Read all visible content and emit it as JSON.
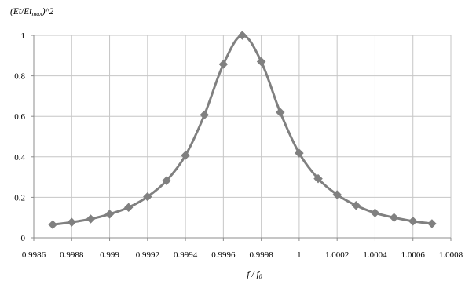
{
  "chart_data": {
    "type": "line",
    "ylabel_main": "(Et/Et",
    "ylabel_sub": "max",
    "ylabel_tail": ")^2",
    "xlabel_main": "f / f",
    "xlabel_sub": "0",
    "xlim": [
      0.9986,
      1.0008
    ],
    "ylim": [
      0,
      1
    ],
    "x_ticks": [
      0.9986,
      0.9988,
      0.999,
      0.9992,
      0.9994,
      0.9996,
      0.9998,
      1,
      1.0002,
      1.0004,
      1.0006,
      1.0008
    ],
    "x_tick_labels": [
      "0.9986",
      "0.9988",
      "0.999",
      "0.9992",
      "0.9994",
      "0.9996",
      "0.9998",
      "1",
      "1.0002",
      "1.0004",
      "1.0006",
      "1.0008"
    ],
    "y_ticks": [
      0,
      0.2,
      0.4,
      0.6,
      0.8,
      1
    ],
    "y_tick_labels": [
      "0",
      "0.2",
      "0.4",
      "0.6",
      "0.8",
      "1"
    ],
    "grid": true,
    "legend": "none",
    "series": [
      {
        "color": "#808080",
        "marker": "diamond",
        "x": [
          0.9987,
          0.9988,
          0.9989,
          0.999,
          0.9991,
          0.9992,
          0.9993,
          0.9994,
          0.9995,
          0.9996,
          0.9997,
          0.9998,
          0.9999,
          1.0,
          1.0001,
          1.0002,
          1.0003,
          1.0004,
          1.0005,
          1.0006,
          1.0007
        ],
        "y": [
          0.065,
          0.077,
          0.093,
          0.117,
          0.15,
          0.203,
          0.282,
          0.407,
          0.607,
          0.857,
          1.0,
          0.87,
          0.62,
          0.418,
          0.292,
          0.213,
          0.16,
          0.123,
          0.1,
          0.082,
          0.07
        ]
      }
    ]
  }
}
